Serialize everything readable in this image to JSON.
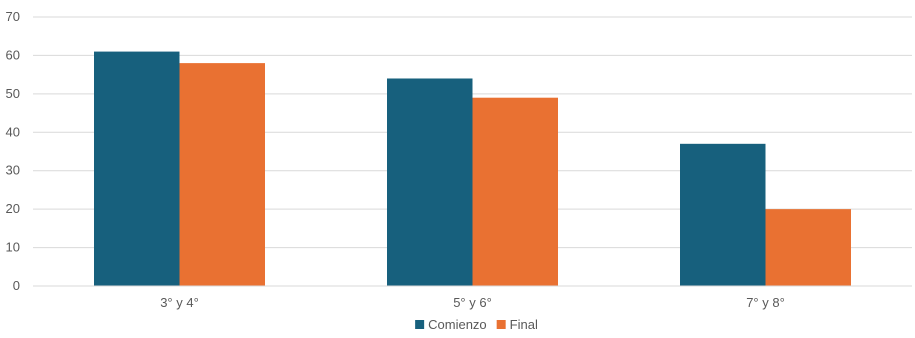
{
  "chart_data": {
    "type": "bar",
    "title": "",
    "xlabel": "",
    "ylabel": "",
    "categories": [
      "3° y 4°",
      "5° y 6°",
      "7° y 8°"
    ],
    "series": [
      {
        "name": "Comienzo",
        "color": "#17607d",
        "values": [
          61,
          54,
          37
        ]
      },
      {
        "name": "Final",
        "color": "#e97132",
        "values": [
          58,
          49,
          20
        ]
      }
    ],
    "ylim": [
      0,
      70
    ],
    "y_ticks": [
      "0",
      "10",
      "20",
      "30",
      "40",
      "50",
      "60",
      "70"
    ],
    "grid": true,
    "legend_position": "bottom"
  }
}
